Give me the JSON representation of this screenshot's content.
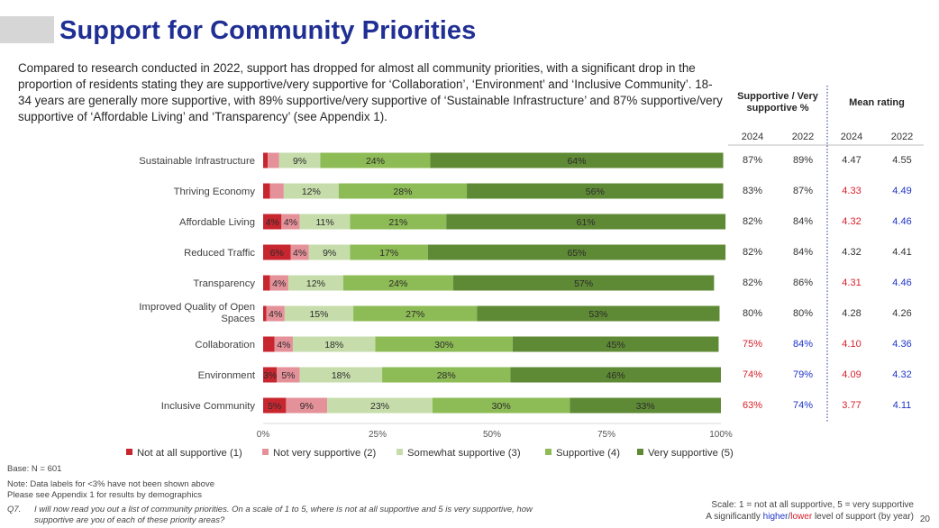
{
  "title": "Support for Community Priorities",
  "intro": "Compared to research conducted in 2022, support has dropped for almost all community priorities, with a significant drop in the proportion of residents stating they are supportive/very supportive for ‘Collaboration’, ‘Environment’ and ‘Inclusive Community’. 18-34 years are generally more supportive, with 89% supportive/very supportive of ‘Sustainable Infrastructure’ and 87% supportive/very supportive of ‘Affordable Living’ and ‘Transparency’ (see Appendix 1).",
  "chart_data": {
    "type": "bar",
    "orientation": "horizontal",
    "stacked": true,
    "percent": true,
    "categories": [
      "Sustainable Infrastructure",
      "Thriving Economy",
      "Affordable Living",
      "Reduced Traffic",
      "Transparency",
      "Improved Quality of Open Spaces",
      "Collaboration",
      "Environment",
      "Inclusive Community"
    ],
    "series": [
      {
        "name": "Not at all supportive (1)",
        "color": "#c8262f",
        "values": [
          1,
          1.5,
          4,
          6,
          1.5,
          0.7,
          2.5,
          3,
          5
        ],
        "labels": [
          "",
          "",
          "4%",
          "6%",
          "",
          "",
          "",
          "3%",
          "5%"
        ]
      },
      {
        "name": "Not very supportive (2)",
        "color": "#e5919a",
        "values": [
          2.5,
          3,
          4,
          4,
          4,
          4,
          4,
          5,
          9
        ],
        "labels": [
          "",
          "",
          "4%",
          "4%",
          "4%",
          "4%",
          "4%",
          "5%",
          "9%"
        ]
      },
      {
        "name": "Somewhat supportive (3)",
        "color": "#c6ddab",
        "values": [
          9,
          12,
          11,
          9,
          12,
          15,
          18,
          18,
          23
        ],
        "labels": [
          "9%",
          "12%",
          "11%",
          "9%",
          "12%",
          "15%",
          "18%",
          "18%",
          "23%"
        ]
      },
      {
        "name": "Supportive (4)",
        "color": "#8dbb55",
        "values": [
          24,
          28,
          21,
          17,
          24,
          27,
          30,
          28,
          30
        ],
        "labels": [
          "24%",
          "28%",
          "21%",
          "17%",
          "24%",
          "27%",
          "30%",
          "28%",
          "30%"
        ]
      },
      {
        "name": "Very supportive (5)",
        "color": "#5f8a35",
        "values": [
          64,
          56,
          61,
          65,
          57,
          53,
          45,
          46,
          33
        ],
        "labels": [
          "64%",
          "56%",
          "61%",
          "65%",
          "57%",
          "53%",
          "45%",
          "46%",
          "33%"
        ]
      }
    ],
    "xlim": [
      0,
      100
    ],
    "xticks": [
      "0%",
      "25%",
      "50%",
      "75%",
      "100%"
    ],
    "legend_position": "bottom"
  },
  "table": {
    "header_supportive": "Supportive / Very supportive %",
    "header_mean": "Mean rating",
    "years": [
      "2024",
      "2022",
      "2024",
      "2022"
    ],
    "rows": [
      {
        "sup2024": "87%",
        "sup2022": "89%",
        "mean2024": "4.47",
        "mean2022": "4.55",
        "flags": [
          "",
          "",
          "",
          ""
        ]
      },
      {
        "sup2024": "83%",
        "sup2022": "87%",
        "mean2024": "4.33",
        "mean2022": "4.49",
        "flags": [
          "",
          "",
          "lower",
          "higher"
        ]
      },
      {
        "sup2024": "82%",
        "sup2022": "84%",
        "mean2024": "4.32",
        "mean2022": "4.46",
        "flags": [
          "",
          "",
          "lower",
          "higher"
        ]
      },
      {
        "sup2024": "82%",
        "sup2022": "84%",
        "mean2024": "4.32",
        "mean2022": "4.41",
        "flags": [
          "",
          "",
          "",
          ""
        ]
      },
      {
        "sup2024": "82%",
        "sup2022": "86%",
        "mean2024": "4.31",
        "mean2022": "4.46",
        "flags": [
          "",
          "",
          "lower",
          "higher"
        ]
      },
      {
        "sup2024": "80%",
        "sup2022": "80%",
        "mean2024": "4.28",
        "mean2022": "4.26",
        "flags": [
          "",
          "",
          "",
          ""
        ]
      },
      {
        "sup2024": "75%",
        "sup2022": "84%",
        "mean2024": "4.10",
        "mean2022": "4.36",
        "flags": [
          "lower",
          "higher",
          "lower",
          "higher"
        ]
      },
      {
        "sup2024": "74%",
        "sup2022": "79%",
        "mean2024": "4.09",
        "mean2022": "4.32",
        "flags": [
          "lower",
          "higher",
          "lower",
          "higher"
        ]
      },
      {
        "sup2024": "63%",
        "sup2022": "74%",
        "mean2024": "3.77",
        "mean2022": "4.11",
        "flags": [
          "lower",
          "higher",
          "lower",
          "higher"
        ]
      }
    ]
  },
  "colors": {
    "higher": "#1f35c7",
    "lower": "#d81f2a",
    "title": "#1f2f93"
  },
  "footer": {
    "base": "Base: N = 601",
    "note1": "Note: Data labels for <3% have not been shown above",
    "note2": "Please see Appendix 1 for results by demographics",
    "question_prefix": "Q7.",
    "question": "I will now read you out a list of community priorities. On a scale of 1 to 5, where is not at all supportive and 5 is very supportive, how supportive are you of each of these priority areas?",
    "scale": "Scale: 1 = not at all supportive, 5 = very supportive",
    "sig_prefix": "A significantly ",
    "sig_higher": "higher",
    "sig_slash": "/",
    "sig_lower": "lower",
    "sig_suffix": " level of support (by year)",
    "page_number": "20"
  }
}
